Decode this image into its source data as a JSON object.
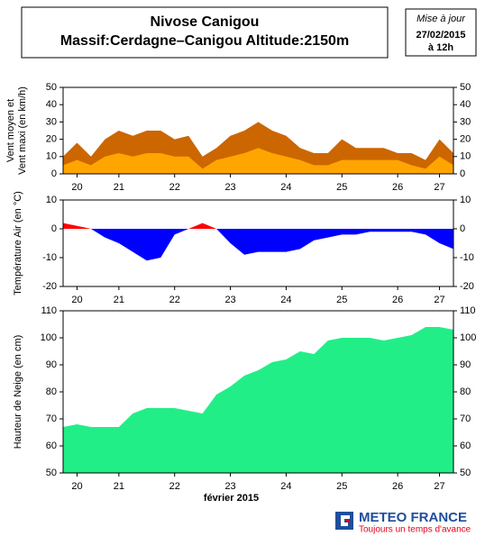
{
  "header": {
    "title": "Nivose Canigou",
    "subtitle": "Massif:Cerdagne–Canigou Altitude:2150m"
  },
  "update": {
    "label": "Mise à jour",
    "date": "27/02/2015",
    "time": "à 12h"
  },
  "chart_data": [
    {
      "type": "area",
      "ylabel": [
        "Vent moyen et",
        "Vent maxi (en km/h)"
      ],
      "x": [
        20.5,
        20.75,
        21,
        21.25,
        21.5,
        21.75,
        22,
        22.25,
        22.5,
        22.75,
        23,
        23.25,
        23.5,
        23.75,
        24,
        24.25,
        24.5,
        24.75,
        25,
        25.25,
        25.5,
        25.75,
        26,
        26.25,
        26.5,
        26.75,
        27,
        27.25,
        27.5
      ],
      "series": [
        {
          "name": "Vent maxi",
          "color": "#cc6600",
          "values": [
            10,
            18,
            10,
            20,
            25,
            22,
            25,
            25,
            20,
            22,
            10,
            15,
            22,
            25,
            30,
            25,
            22,
            15,
            12,
            12,
            20,
            15,
            15,
            15,
            12,
            12,
            8,
            20,
            12
          ]
        },
        {
          "name": "Vent moyen",
          "color": "#ffa500",
          "values": [
            5,
            8,
            5,
            10,
            12,
            10,
            12,
            12,
            10,
            10,
            3,
            8,
            10,
            12,
            15,
            12,
            10,
            8,
            5,
            5,
            8,
            8,
            8,
            8,
            8,
            5,
            3,
            10,
            5
          ]
        }
      ],
      "xlim": [
        20.5,
        27.5
      ],
      "xticks": [
        {
          "value": 20.75,
          "label": "20"
        },
        {
          "value": 21.5,
          "label": "21"
        },
        {
          "value": 22.5,
          "label": "22"
        },
        {
          "value": 23.5,
          "label": "23"
        },
        {
          "value": 24.5,
          "label": "24"
        },
        {
          "value": 25.5,
          "label": "25"
        },
        {
          "value": 26.5,
          "label": "26"
        },
        {
          "value": 27.25,
          "label": "27"
        }
      ],
      "ylim": [
        0,
        50
      ],
      "yticks": [
        0,
        10,
        20,
        30,
        40,
        50
      ]
    },
    {
      "type": "signed-area",
      "ylabel": [
        "Température Air (en °C)"
      ],
      "x": [
        20.5,
        20.75,
        21,
        21.25,
        21.5,
        21.75,
        22,
        22.25,
        22.5,
        22.75,
        23,
        23.25,
        23.5,
        23.75,
        24,
        24.25,
        24.5,
        24.75,
        25,
        25.25,
        25.5,
        25.75,
        26,
        26.25,
        26.5,
        26.75,
        27,
        27.25,
        27.5
      ],
      "series": [
        {
          "name": "Température Air",
          "color": "#ff0000",
          "color_below": "#0000ff",
          "values": [
            2,
            1,
            0,
            -3,
            -5,
            -8,
            -11,
            -10,
            -2,
            0,
            2,
            0,
            -5,
            -9,
            -8,
            -8,
            -8,
            -7,
            -4,
            -3,
            -2,
            -2,
            -1,
            -1,
            -1,
            -1,
            -2,
            -5,
            -7
          ]
        }
      ],
      "xlim": [
        20.5,
        27.5
      ],
      "xticks": [
        {
          "value": 20.75,
          "label": "20"
        },
        {
          "value": 21.5,
          "label": "21"
        },
        {
          "value": 22.5,
          "label": "22"
        },
        {
          "value": 23.5,
          "label": "23"
        },
        {
          "value": 24.5,
          "label": "24"
        },
        {
          "value": 25.5,
          "label": "25"
        },
        {
          "value": 26.5,
          "label": "26"
        },
        {
          "value": 27.25,
          "label": "27"
        }
      ],
      "ylim": [
        -20,
        10
      ],
      "yticks": [
        -20,
        -10,
        0,
        10
      ]
    },
    {
      "type": "area",
      "ylabel": [
        "Hauteur de Neige (en cm)"
      ],
      "xlabel": "février 2015",
      "x": [
        20.5,
        20.75,
        21,
        21.25,
        21.5,
        21.75,
        22,
        22.25,
        22.5,
        22.75,
        23,
        23.25,
        23.5,
        23.75,
        24,
        24.25,
        24.5,
        24.75,
        25,
        25.25,
        25.5,
        25.75,
        26,
        26.25,
        26.5,
        26.75,
        27,
        27.25,
        27.5
      ],
      "series": [
        {
          "name": "Hauteur de Neige",
          "color": "#22ee88",
          "values": [
            67,
            68,
            67,
            67,
            67,
            72,
            74,
            74,
            74,
            73,
            72,
            79,
            82,
            86,
            88,
            91,
            92,
            95,
            94,
            99,
            100,
            100,
            100,
            99,
            100,
            101,
            104,
            104,
            103
          ]
        }
      ],
      "xlim": [
        20.5,
        27.5
      ],
      "xticks": [
        {
          "value": 20.75,
          "label": "20"
        },
        {
          "value": 21.5,
          "label": "21"
        },
        {
          "value": 22.5,
          "label": "22"
        },
        {
          "value": 23.5,
          "label": "23"
        },
        {
          "value": 24.5,
          "label": "24"
        },
        {
          "value": 25.5,
          "label": "25"
        },
        {
          "value": 26.5,
          "label": "26"
        },
        {
          "value": 27.25,
          "label": "27"
        }
      ],
      "ylim": [
        50,
        110
      ],
      "yticks": [
        50,
        60,
        70,
        80,
        90,
        100,
        110
      ]
    }
  ],
  "logo": {
    "name": "METEO FRANCE",
    "tagline": "Toujours un temps d'avance"
  }
}
